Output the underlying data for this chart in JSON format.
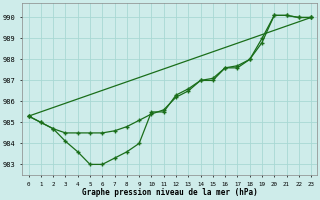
{
  "xlabel": "Graphe pression niveau de la mer (hPa)",
  "bg_color": "#ceecea",
  "grid_color": "#a8d8d4",
  "line_color": "#1a6e1a",
  "x_ticks": [
    0,
    1,
    2,
    3,
    4,
    5,
    6,
    7,
    8,
    9,
    10,
    11,
    12,
    13,
    14,
    15,
    16,
    17,
    18,
    19,
    20,
    21,
    22,
    23
  ],
  "ylim": [
    982.5,
    990.7
  ],
  "yticks": [
    983,
    984,
    985,
    986,
    987,
    988,
    989,
    990
  ],
  "line_straight": {
    "x": [
      0,
      23
    ],
    "y": [
      985.3,
      990.0
    ]
  },
  "line_mid": {
    "x": [
      0,
      1,
      2,
      3,
      4,
      5,
      6,
      7,
      8,
      9,
      10,
      11,
      12,
      13,
      14,
      15,
      16,
      17,
      18,
      19,
      20,
      21,
      22,
      23
    ],
    "y": [
      985.3,
      985.0,
      984.7,
      984.5,
      984.5,
      984.5,
      984.5,
      984.6,
      984.8,
      985.1,
      985.4,
      985.6,
      986.2,
      986.5,
      987.0,
      987.1,
      987.6,
      987.7,
      988.0,
      989.0,
      990.1,
      990.1,
      990.0,
      990.0
    ]
  },
  "line_deep": {
    "x": [
      0,
      1,
      2,
      3,
      4,
      5,
      6,
      7,
      8,
      9,
      10,
      11,
      12,
      13,
      14,
      15,
      16,
      17,
      18,
      19,
      20,
      21,
      22,
      23
    ],
    "y": [
      985.3,
      985.0,
      984.7,
      984.1,
      983.6,
      983.0,
      983.0,
      983.3,
      983.6,
      984.0,
      985.5,
      985.5,
      986.3,
      986.6,
      987.0,
      987.0,
      987.6,
      987.6,
      988.0,
      988.8,
      990.1,
      990.1,
      990.0,
      990.0
    ]
  }
}
